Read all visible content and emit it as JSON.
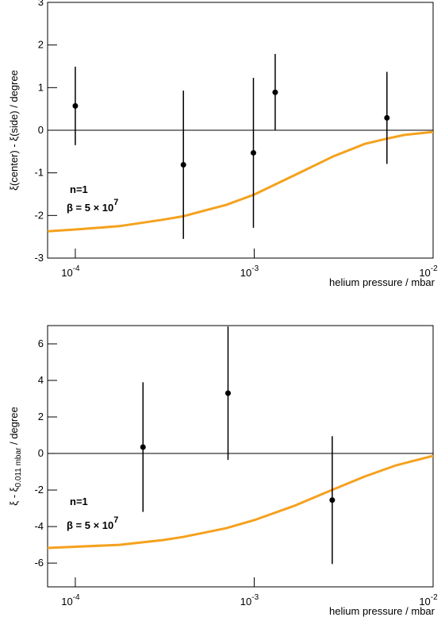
{
  "chart_data": [
    {
      "type": "scatter",
      "y_label": "ξ(center) - ξ(side) / degree",
      "x_label": "helium pressure / mbar",
      "xlog": true,
      "xlim": [
        7e-05,
        0.01
      ],
      "xticks": [
        {
          "value": 0.0001,
          "label": "10",
          "sup": "-4"
        },
        {
          "value": 0.001,
          "label": "10",
          "sup": "-3"
        },
        {
          "value": 0.01,
          "label": "10",
          "sup": "-2"
        }
      ],
      "ylim": [
        -3,
        3
      ],
      "yticks": [
        -3,
        -2,
        -1,
        0,
        1,
        2,
        3
      ],
      "hline": 0,
      "points": {
        "color": "#000000",
        "x": [
          0.0001,
          0.000402,
          0.00099,
          0.00131,
          0.00552
        ],
        "values": [
          0.57,
          -0.81,
          -0.53,
          0.89,
          0.29
        ],
        "errors": [
          0.92,
          1.74,
          1.76,
          0.9,
          1.08
        ]
      },
      "curve": {
        "color": "#f5a11e",
        "x": [
          7e-05,
          0.0001,
          0.000176,
          0.000308,
          0.0004,
          0.000699,
          0.001,
          0.00167,
          0.00278,
          0.00415,
          0.0055,
          0.00692,
          0.01
        ],
        "values": [
          -2.37,
          -2.33,
          -2.25,
          -2.1,
          -2.02,
          -1.75,
          -1.51,
          -1.06,
          -0.61,
          -0.32,
          -0.2,
          -0.11,
          -0.04
        ]
      },
      "annotations": [
        {
          "text": "n=1"
        },
        {
          "text": "β = 5 × 10",
          "sup": "7"
        }
      ]
    },
    {
      "type": "scatter",
      "y_label": "ξ - ξ",
      "y_label_sub": "0.011 mbar",
      "y_label_tail": " / degree",
      "x_label": "helium pressure / mbar",
      "xlog": true,
      "xlim": [
        7e-05,
        0.01
      ],
      "xticks": [
        {
          "value": 0.0001,
          "label": "10",
          "sup": "-4"
        },
        {
          "value": 0.001,
          "label": "10",
          "sup": "-3"
        },
        {
          "value": 0.01,
          "label": "10",
          "sup": "-2"
        }
      ],
      "ylim": [
        -7.3,
        7
      ],
      "yticks": [
        -6,
        -4,
        -2,
        0,
        2,
        4,
        6
      ],
      "hline": 0,
      "points": {
        "color": "#000000",
        "x": [
          0.000239,
          0.000714,
          0.00273
        ],
        "values": [
          0.35,
          3.3,
          -2.55
        ],
        "errors": [
          3.55,
          3.65,
          3.5
        ]
      },
      "curve": {
        "color": "#f5a11e",
        "x": [
          7e-05,
          0.000176,
          0.000308,
          0.0004,
          0.000699,
          0.001,
          0.00167,
          0.00278,
          0.00415,
          0.0062,
          0.01
        ],
        "values": [
          -5.17,
          -5.0,
          -4.74,
          -4.57,
          -4.09,
          -3.65,
          -2.87,
          -1.96,
          -1.26,
          -0.65,
          -0.13
        ]
      },
      "annotations": [
        {
          "text": "n=1"
        },
        {
          "text": "β = 5 × 10",
          "sup": "7"
        }
      ]
    }
  ]
}
